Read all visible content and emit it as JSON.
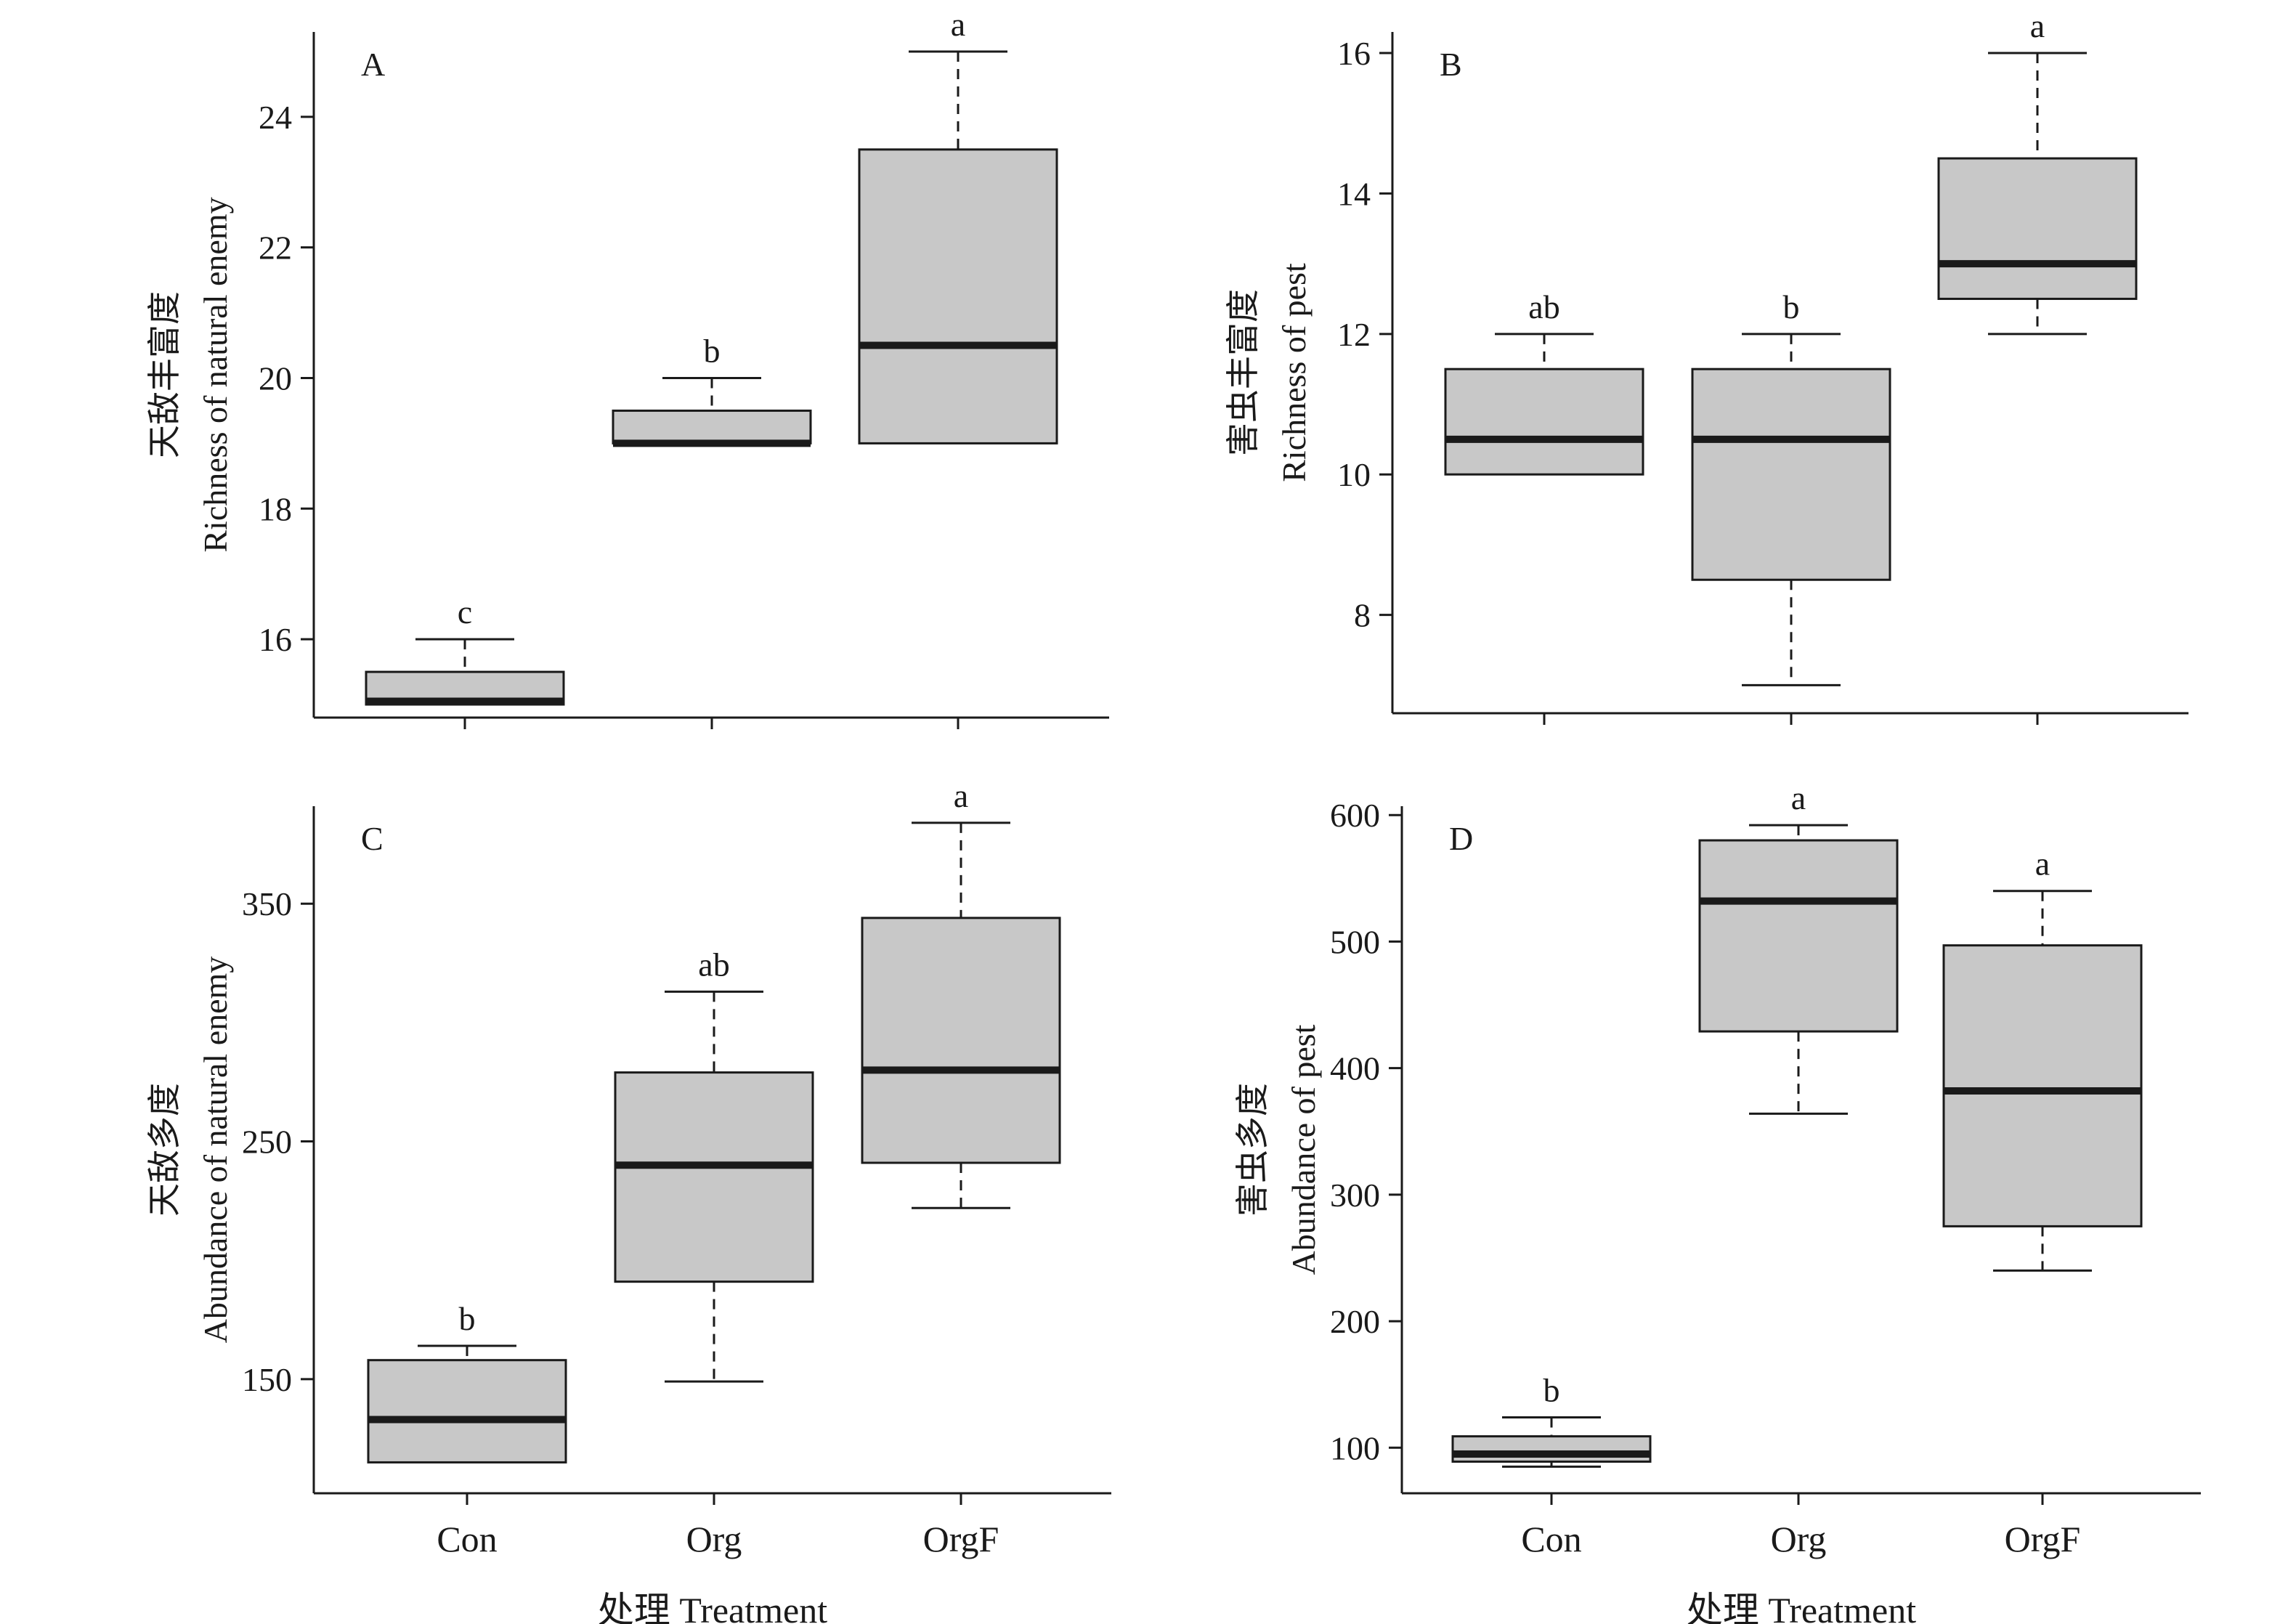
{
  "chart_data": [
    {
      "type": "box",
      "panel": "A",
      "ylabel_zh": "天敌丰富度",
      "ylabel_en": "Richness of natural enemy",
      "xlabel": "",
      "categories": [
        "Con",
        "Org",
        "OrgF"
      ],
      "show_category_labels": false,
      "ylim": [
        14.8,
        25.3
      ],
      "yticks": [
        16,
        18,
        20,
        22,
        24
      ],
      "boxes": [
        {
          "category": "Con",
          "whisker_low": 15,
          "q1": 15,
          "median": 15.05,
          "q3": 15.5,
          "whisker_high": 16,
          "letter": "c"
        },
        {
          "category": "Org",
          "whisker_low": 19,
          "q1": 19,
          "median": 19,
          "q3": 19.5,
          "whisker_high": 20,
          "letter": "b"
        },
        {
          "category": "OrgF",
          "whisker_low": 19,
          "q1": 19,
          "median": 20.5,
          "q3": 23.5,
          "whisker_high": 25,
          "letter": "a"
        }
      ]
    },
    {
      "type": "box",
      "panel": "B",
      "ylabel_zh": "害虫丰富度",
      "ylabel_en": "Richness of pest",
      "xlabel": "",
      "categories": [
        "Con",
        "Org",
        "OrgF"
      ],
      "show_category_labels": false,
      "ylim": [
        6.6,
        16.3
      ],
      "yticks": [
        8,
        10,
        12,
        14,
        16
      ],
      "boxes": [
        {
          "category": "Con",
          "whisker_low": 10,
          "q1": 10,
          "median": 10.5,
          "q3": 11.5,
          "whisker_high": 12,
          "letter": "ab"
        },
        {
          "category": "Org",
          "whisker_low": 7,
          "q1": 8.5,
          "median": 10.5,
          "q3": 11.5,
          "whisker_high": 12,
          "letter": "b"
        },
        {
          "category": "OrgF",
          "whisker_low": 12,
          "q1": 12.5,
          "median": 13,
          "q3": 14.5,
          "whisker_high": 16,
          "letter": "a"
        }
      ]
    },
    {
      "type": "box",
      "panel": "C",
      "ylabel_zh": "天敌多度",
      "ylabel_en": "Abundance of natural enemy",
      "xlabel": "处理 Treatment",
      "categories": [
        "Con",
        "Org",
        "OrgF"
      ],
      "show_category_labels": true,
      "ylim": [
        102,
        391
      ],
      "yticks": [
        150,
        250,
        350
      ],
      "boxes": [
        {
          "category": "Con",
          "whisker_low": 115,
          "q1": 115,
          "median": 133,
          "q3": 158,
          "whisker_high": 164,
          "letter": "b"
        },
        {
          "category": "Org",
          "whisker_low": 149,
          "q1": 191,
          "median": 240,
          "q3": 279,
          "whisker_high": 313,
          "letter": "ab"
        },
        {
          "category": "OrgF",
          "whisker_low": 222,
          "q1": 241,
          "median": 280,
          "q3": 344,
          "whisker_high": 384,
          "letter": "a"
        }
      ]
    },
    {
      "type": "box",
      "panel": "D",
      "ylabel_zh": "害虫多度",
      "ylabel_en": "Abundance of pest",
      "xlabel": "处理 Treatment",
      "categories": [
        "Con",
        "Org",
        "OrgF"
      ],
      "show_category_labels": true,
      "ylim": [
        64,
        607
      ],
      "yticks": [
        100,
        200,
        300,
        400,
        500,
        600
      ],
      "boxes": [
        {
          "category": "Con",
          "whisker_low": 85,
          "q1": 89,
          "median": 95,
          "q3": 109,
          "whisker_high": 124,
          "letter": "b"
        },
        {
          "category": "Org",
          "whisker_low": 364,
          "q1": 429,
          "median": 532,
          "q3": 580,
          "whisker_high": 592,
          "letter": "a"
        },
        {
          "category": "OrgF",
          "whisker_low": 240,
          "q1": 275,
          "median": 382,
          "q3": 497,
          "whisker_high": 540,
          "letter": "a"
        }
      ]
    }
  ],
  "style": {
    "box_fill": "#c8c8c8",
    "stroke": "#1a1a1a"
  }
}
